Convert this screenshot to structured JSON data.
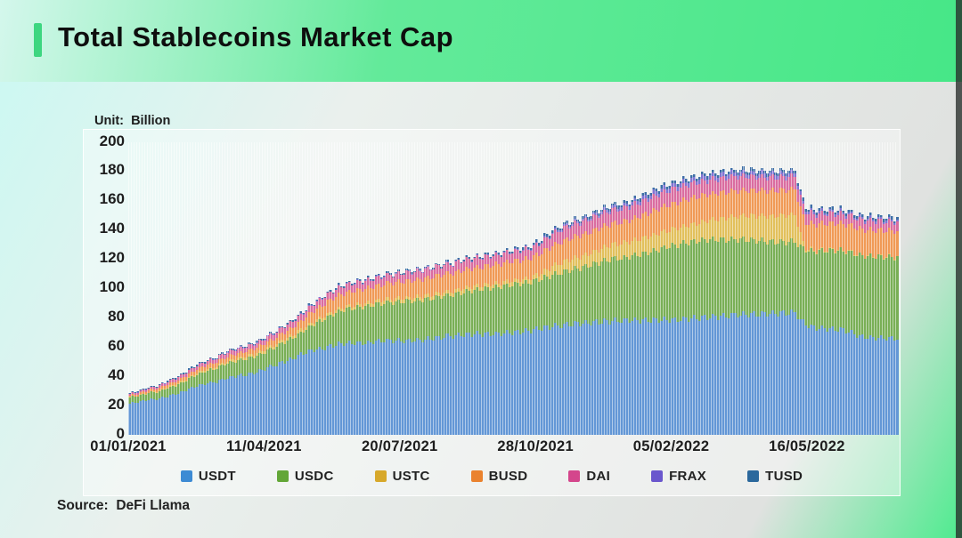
{
  "header": {
    "title": "Total Stablecoins Market Cap"
  },
  "unit_label": "Unit:  Billion",
  "source_label": "Source:  DeFi Llama",
  "colors": {
    "accent_bar": "#3dd680",
    "header_gradient_left": "#d4f7ec",
    "header_gradient_right": "#46e787",
    "background_cyan": "#cdf8f2",
    "background_green": "#4deb8e",
    "text": "#1d1d1d"
  },
  "chart_data": {
    "type": "bar",
    "subtype": "stacked-daily-bars",
    "title": "Total Stablecoins Market Cap",
    "unit": "Billion",
    "start_date": "01/01/2021",
    "sample_interval_days": 7,
    "x_tick_interval_days": 100,
    "x_tick_labels": [
      "01/01/2021",
      "11/04/2021",
      "20/07/2021",
      "28/10/2021",
      "05/02/2022",
      "16/05/2022"
    ],
    "y_ticks": [
      0,
      20,
      40,
      60,
      80,
      100,
      120,
      140,
      160,
      180,
      200
    ],
    "ylim": [
      0,
      200
    ],
    "grid": false,
    "legend_position": "bottom",
    "series": [
      {
        "name": "USDT",
        "color": "#3d8bd4",
        "bar_color": "#6397d6",
        "values": [
          21.5,
          22.5,
          24.0,
          24.4,
          26.4,
          28.0,
          30.5,
          33.0,
          34.8,
          36.0,
          38.5,
          40.0,
          40.8,
          42.2,
          44.5,
          47.0,
          49.5,
          51.5,
          55.0,
          57.5,
          58.5,
          60.3,
          62.0,
          62.6,
          62.7,
          62.8,
          64.0,
          64.3,
          64.4,
          64.4,
          64.5,
          65.0,
          66.0,
          67.0,
          67.5,
          68.5,
          68.8,
          69.0,
          69.0,
          69.2,
          70.0,
          70.5,
          71.0,
          72.5,
          73.5,
          74.5,
          75.5,
          76.0,
          76.5,
          77.0,
          77.5,
          78.0,
          78.3,
          78.4,
          78.4,
          78.4,
          78.4,
          78.5,
          79.0,
          79.5,
          80.0,
          80.5,
          81.0,
          81.5,
          82.0,
          82.3,
          82.5,
          82.8,
          83.0,
          83.2,
          83.4,
          76.0,
          73.3,
          72.8,
          72.3,
          72.0,
          70.0,
          67.0,
          66.4,
          66.2,
          66.0,
          65.9
        ]
      },
      {
        "name": "USDC",
        "color": "#63a637",
        "bar_color": "#79af56",
        "values": [
          4.1,
          4.3,
          4.7,
          5.1,
          5.5,
          6.0,
          6.6,
          7.8,
          8.6,
          9.2,
          9.8,
          10.3,
          10.8,
          11.0,
          11.3,
          12.0,
          13.2,
          14.2,
          14.8,
          16.5,
          19.0,
          20.5,
          22.3,
          23.5,
          24.3,
          25.0,
          25.5,
          26.0,
          26.5,
          27.0,
          27.2,
          27.5,
          27.6,
          27.8,
          28.0,
          29.0,
          29.8,
          30.5,
          31.3,
          32.0,
          32.5,
          32.7,
          33.0,
          33.5,
          34.5,
          35.5,
          36.5,
          37.5,
          38.5,
          40.0,
          41.5,
          42.5,
          42.7,
          44.0,
          45.5,
          47.0,
          49.0,
          50.5,
          51.5,
          52.3,
          52.8,
          53.0,
          52.5,
          52.0,
          51.5,
          51.0,
          50.3,
          49.5,
          48.8,
          48.5,
          48.5,
          50.5,
          52.0,
          53.3,
          53.8,
          54.0,
          54.5,
          55.3,
          55.6,
          55.7,
          55.5,
          55.4
        ]
      },
      {
        "name": "USTC",
        "color": "#d7a82b",
        "bar_color": "#e2c05c",
        "values": [
          0.2,
          0.25,
          0.35,
          0.5,
          0.65,
          0.8,
          0.95,
          1.05,
          1.1,
          1.3,
          1.5,
          1.6,
          1.7,
          1.75,
          1.8,
          1.85,
          1.9,
          2.0,
          2.05,
          2.0,
          1.95,
          1.9,
          1.9,
          1.9,
          1.95,
          2.0,
          2.0,
          2.05,
          2.1,
          2.2,
          2.3,
          2.4,
          2.5,
          2.55,
          2.6,
          2.65,
          2.7,
          2.7,
          2.7,
          2.7,
          2.7,
          2.75,
          2.8,
          3.5,
          5.0,
          6.5,
          7.2,
          7.6,
          7.9,
          8.5,
          9.2,
          9.8,
          10.1,
          10.3,
          10.5,
          10.7,
          11.0,
          11.2,
          11.4,
          11.8,
          12.3,
          13.0,
          14.0,
          15.0,
          16.0,
          16.5,
          16.8,
          17.3,
          17.8,
          18.3,
          18.6,
          1.5,
          0.7,
          0.5,
          0.45,
          0.4,
          0.4,
          0.35,
          0.35,
          0.3,
          0.3,
          0.3
        ]
      },
      {
        "name": "BUSD",
        "color": "#ea822e",
        "bar_color": "#f09a56",
        "values": [
          1.0,
          1.2,
          1.4,
          1.6,
          1.9,
          2.1,
          2.4,
          2.6,
          2.7,
          2.9,
          3.1,
          3.3,
          3.5,
          3.6,
          3.8,
          4.2,
          4.7,
          5.2,
          5.8,
          7.0,
          8.0,
          8.8,
          9.3,
          9.7,
          10.0,
          10.2,
          10.4,
          10.8,
          11.2,
          11.5,
          11.7,
          11.9,
          12.1,
          12.2,
          12.3,
          12.4,
          12.5,
          12.6,
          12.8,
          13.0,
          13.2,
          13.4,
          13.5,
          13.7,
          14.0,
          14.2,
          14.4,
          14.5,
          14.5,
          14.5,
          14.5,
          14.5,
          14.6,
          15.0,
          15.8,
          16.5,
          17.0,
          17.3,
          17.6,
          17.8,
          17.9,
          17.9,
          17.8,
          17.7,
          17.6,
          17.5,
          17.5,
          17.4,
          17.4,
          17.4,
          17.4,
          17.6,
          17.8,
          18.0,
          18.1,
          18.2,
          18.0,
          17.8,
          17.7,
          17.7,
          17.6,
          17.6
        ]
      },
      {
        "name": "DAI",
        "color": "#d4468c",
        "bar_color": "#da6da0",
        "values": [
          1.2,
          1.3,
          1.5,
          1.6,
          1.8,
          2.0,
          2.2,
          2.3,
          2.5,
          2.7,
          2.9,
          3.0,
          3.1,
          3.2,
          3.4,
          3.6,
          3.8,
          4.0,
          4.3,
          4.6,
          4.8,
          5.0,
          5.1,
          5.2,
          5.3,
          5.3,
          5.4,
          5.5,
          5.6,
          5.7,
          5.8,
          5.9,
          6.1,
          6.3,
          6.4,
          6.5,
          6.5,
          6.5,
          6.4,
          6.4,
          6.5,
          6.5,
          6.6,
          6.8,
          7.5,
          8.2,
          8.7,
          8.9,
          9.0,
          9.1,
          9.2,
          9.2,
          9.3,
          9.4,
          9.6,
          9.8,
          9.9,
          10.0,
          10.0,
          9.9,
          9.8,
          9.7,
          9.6,
          9.6,
          9.5,
          9.3,
          9.1,
          9.0,
          8.9,
          8.8,
          8.7,
          7.3,
          6.8,
          6.6,
          6.5,
          6.5,
          6.4,
          6.3,
          6.3,
          6.3,
          6.3,
          6.3
        ]
      },
      {
        "name": "FRAX",
        "color": "#6a57cd",
        "bar_color": "#8274d2",
        "values": [
          0.08,
          0.09,
          0.1,
          0.1,
          0.11,
          0.12,
          0.13,
          0.14,
          0.15,
          0.16,
          0.17,
          0.18,
          0.19,
          0.2,
          0.2,
          0.21,
          0.22,
          0.23,
          0.24,
          0.25,
          0.26,
          0.27,
          0.28,
          0.28,
          0.29,
          0.3,
          0.3,
          0.3,
          0.31,
          0.31,
          0.32,
          0.32,
          0.33,
          0.34,
          0.34,
          0.35,
          0.36,
          0.37,
          0.38,
          0.39,
          0.4,
          0.45,
          0.5,
          0.6,
          0.9,
          1.1,
          1.2,
          1.3,
          1.4,
          1.5,
          1.7,
          1.8,
          1.9,
          2.1,
          2.4,
          2.6,
          2.7,
          2.75,
          2.8,
          2.85,
          2.9,
          2.9,
          2.9,
          2.85,
          2.8,
          2.75,
          2.7,
          2.7,
          2.65,
          2.6,
          2.6,
          2.0,
          1.7,
          1.6,
          1.55,
          1.5,
          1.5,
          1.45,
          1.45,
          1.4,
          1.4,
          1.4
        ]
      },
      {
        "name": "TUSD",
        "color": "#2b689c",
        "bar_color": "#3e6fa6",
        "values": [
          0.3,
          0.3,
          0.31,
          0.31,
          0.32,
          0.32,
          0.33,
          0.33,
          0.34,
          0.34,
          0.35,
          0.35,
          0.36,
          0.36,
          0.37,
          0.38,
          0.38,
          0.39,
          0.39,
          0.4,
          0.4,
          0.41,
          0.41,
          0.42,
          0.42,
          0.42,
          0.43,
          0.43,
          0.44,
          0.44,
          0.45,
          0.46,
          0.47,
          0.48,
          0.49,
          0.5,
          0.51,
          0.52,
          0.53,
          0.55,
          0.7,
          0.9,
          1.0,
          1.1,
          1.15,
          1.2,
          1.2,
          1.2,
          1.2,
          1.25,
          1.3,
          1.3,
          1.3,
          1.35,
          1.4,
          1.4,
          1.4,
          1.4,
          1.4,
          1.4,
          1.4,
          1.4,
          1.4,
          1.4,
          1.4,
          1.4,
          1.4,
          1.4,
          1.4,
          1.4,
          1.4,
          1.3,
          1.25,
          1.2,
          1.2,
          1.2,
          1.2,
          1.2,
          1.2,
          1.2,
          1.2,
          1.2
        ]
      }
    ]
  }
}
